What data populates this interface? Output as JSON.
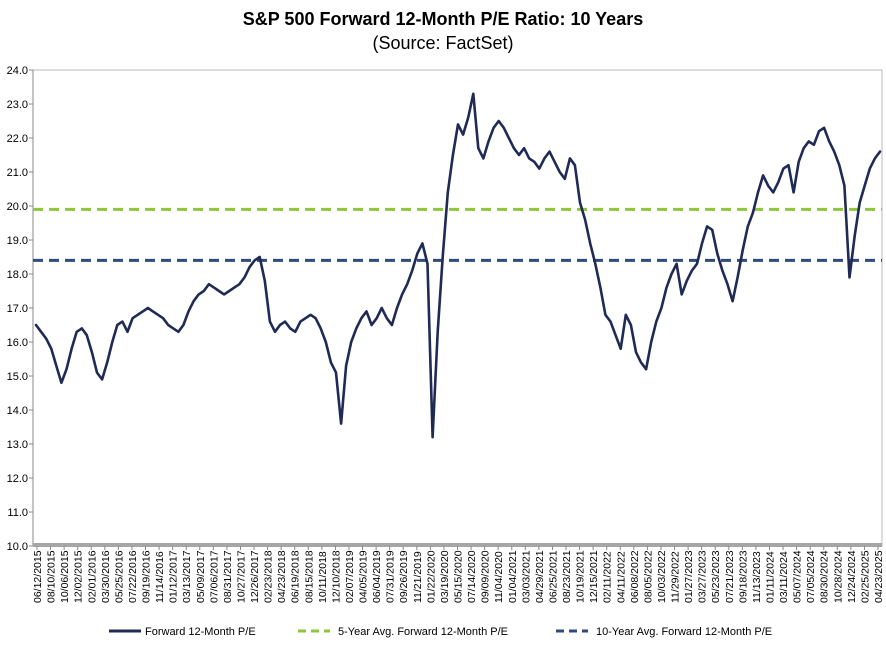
{
  "chart_data": {
    "type": "line",
    "title": "S&P 500 Forward 12-Month P/E Ratio: 10 Years",
    "subtitle": "(Source: FactSet)",
    "ylim": [
      10.0,
      24.0
    ],
    "y_ticks": [
      "10.0",
      "11.0",
      "12.0",
      "13.0",
      "14.0",
      "15.0",
      "16.0",
      "17.0",
      "18.0",
      "19.0",
      "20.0",
      "21.0",
      "22.0",
      "23.0",
      "24.0"
    ],
    "x_ticks": [
      "06/12/2015",
      "08/10/2015",
      "10/06/2015",
      "12/02/2015",
      "02/01/2016",
      "03/30/2016",
      "05/25/2016",
      "07/22/2016",
      "09/19/2016",
      "11/14/2016",
      "01/12/2017",
      "03/13/2017",
      "05/09/2017",
      "07/06/2017",
      "08/31/2017",
      "10/27/2017",
      "12/26/2017",
      "02/23/2018",
      "04/23/2018",
      "06/19/2018",
      "08/15/2018",
      "10/11/2018",
      "12/10/2018",
      "02/07/2019",
      "04/05/2019",
      "06/04/2019",
      "07/31/2019",
      "09/26/2019",
      "11/21/2019",
      "01/22/2020",
      "03/19/2020",
      "05/15/2020",
      "07/14/2020",
      "09/09/2020",
      "11/04/2020",
      "01/04/2021",
      "03/03/2021",
      "04/29/2021",
      "06/25/2021",
      "08/23/2021",
      "10/19/2021",
      "12/15/2021",
      "02/11/2022",
      "04/11/2022",
      "06/08/2022",
      "08/05/2022",
      "10/03/2022",
      "11/29/2022",
      "01/27/2023",
      "03/27/2023",
      "05/23/2023",
      "07/21/2023",
      "09/18/2023",
      "11/13/2023",
      "01/11/2024",
      "03/11/2024",
      "05/07/2024",
      "07/05/2024",
      "08/30/2024",
      "10/28/2024",
      "12/24/2024",
      "02/25/2025",
      "04/23/2025"
    ],
    "series": [
      {
        "name": "Forward 12-Month P/E",
        "color": "#1f2a55",
        "style": "solid",
        "values": [
          16.5,
          16.3,
          16.1,
          15.8,
          15.3,
          14.8,
          15.2,
          15.8,
          16.3,
          16.4,
          16.2,
          15.7,
          15.1,
          14.9,
          15.4,
          16.0,
          16.5,
          16.6,
          16.3,
          16.7,
          16.8,
          16.9,
          17.0,
          16.9,
          16.8,
          16.7,
          16.5,
          16.4,
          16.3,
          16.5,
          16.9,
          17.2,
          17.4,
          17.5,
          17.7,
          17.6,
          17.5,
          17.4,
          17.5,
          17.6,
          17.7,
          17.9,
          18.2,
          18.4,
          18.5,
          17.8,
          16.6,
          16.3,
          16.5,
          16.6,
          16.4,
          16.3,
          16.6,
          16.7,
          16.8,
          16.7,
          16.4,
          16.0,
          15.4,
          15.1,
          13.6,
          15.3,
          16.0,
          16.4,
          16.7,
          16.9,
          16.5,
          16.7,
          17.0,
          16.7,
          16.5,
          17.0,
          17.4,
          17.7,
          18.1,
          18.6,
          18.9,
          18.3,
          13.2,
          16.3,
          18.5,
          20.4,
          21.5,
          22.4,
          22.1,
          22.6,
          23.3,
          21.7,
          21.4,
          21.9,
          22.3,
          22.5,
          22.3,
          22.0,
          21.7,
          21.5,
          21.7,
          21.4,
          21.3,
          21.1,
          21.4,
          21.6,
          21.3,
          21.0,
          20.8,
          21.4,
          21.2,
          20.1,
          19.6,
          18.9,
          18.3,
          17.6,
          16.8,
          16.6,
          16.2,
          15.8,
          16.8,
          16.5,
          15.7,
          15.4,
          15.2,
          16.0,
          16.6,
          17.0,
          17.6,
          18.0,
          18.3,
          17.4,
          17.8,
          18.1,
          18.3,
          18.9,
          19.4,
          19.3,
          18.6,
          18.1,
          17.7,
          17.2,
          17.9,
          18.7,
          19.4,
          19.8,
          20.4,
          20.9,
          20.6,
          20.4,
          20.7,
          21.1,
          21.2,
          20.4,
          21.3,
          21.7,
          21.9,
          21.8,
          22.2,
          22.3,
          21.9,
          21.6,
          21.2,
          20.6,
          17.9,
          19.1,
          20.1,
          20.6,
          21.1,
          21.4,
          21.6
        ]
      },
      {
        "name": "5-Year Avg. Forward 12-Month P/E",
        "color": "#8dc63f",
        "style": "dashed",
        "value": 19.9
      },
      {
        "name": "10-Year Avg. Forward 12-Month P/E",
        "color": "#2f4b7c",
        "style": "dashed",
        "value": 18.4
      }
    ],
    "grid": false,
    "legend_position": "bottom"
  }
}
